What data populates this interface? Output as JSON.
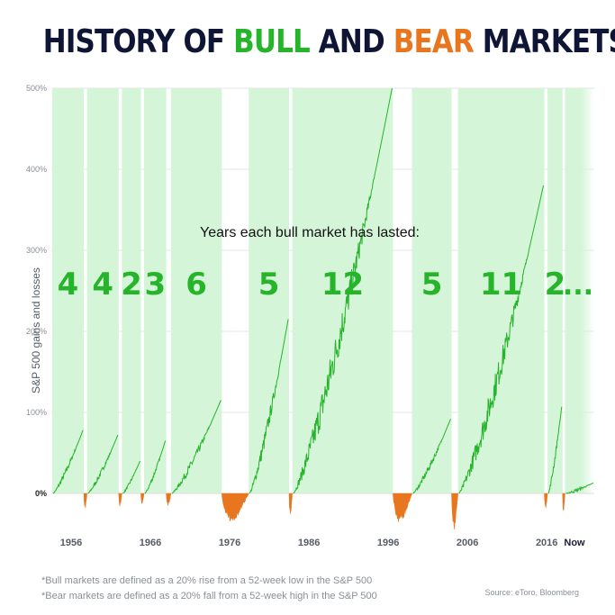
{
  "title": {
    "part1": "HISTORY OF ",
    "bull": "BULL",
    "part2": " AND ",
    "bear": "BEAR",
    "part3": " MARKETS"
  },
  "colors": {
    "title": "#0f1535",
    "bull": "#25b42a",
    "bear": "#e8761e",
    "bull_band": "#d5f5d8",
    "grid": "#e6e6e6"
  },
  "chart_data": {
    "type": "area",
    "ylabel": "S&P 500 gains and losses",
    "ylim": [
      -50,
      500
    ],
    "yticks": [
      "0%",
      "100%",
      "200%",
      "300%",
      "400%",
      "500%"
    ],
    "ytick_values": [
      0,
      100,
      200,
      300,
      400,
      500
    ],
    "xlim": [
      1953.5,
      2022
    ],
    "xticks": [
      "1956",
      "1966",
      "1976",
      "1986",
      "1996",
      "2006",
      "2016",
      "Now"
    ],
    "xtick_values": [
      1956,
      1966,
      1976,
      1986,
      1996,
      2006,
      2016,
      2021
    ],
    "annotation": "Years each bull market has lasted:",
    "bull_markets": [
      {
        "start": 1953.6,
        "end": 1957.6,
        "years": "4",
        "peak": 78
      },
      {
        "start": 1958.0,
        "end": 1962.0,
        "years": "4",
        "peak": 72
      },
      {
        "start": 1962.4,
        "end": 1964.8,
        "years": "2",
        "peak": 40
      },
      {
        "start": 1965.2,
        "end": 1968.0,
        "years": "3",
        "peak": 65
      },
      {
        "start": 1968.6,
        "end": 1975.0,
        "years": "6",
        "peak": 115
      },
      {
        "start": 1978.4,
        "end": 1983.5,
        "years": "5",
        "peak": 215
      },
      {
        "start": 1983.9,
        "end": 1996.6,
        "years": "12",
        "peak": 500
      },
      {
        "start": 1999.0,
        "end": 2004.0,
        "years": "5",
        "peak": 92
      },
      {
        "start": 2004.8,
        "end": 2015.7,
        "years": "11",
        "peak": 380
      },
      {
        "start": 2016.1,
        "end": 2018.0,
        "years": "2",
        "peak": 107
      },
      {
        "start": 2018.3,
        "end": 2022.0,
        "years": "...",
        "peak": 13
      }
    ],
    "bear_markets": [
      {
        "start": 1957.6,
        "end": 1958.0,
        "trough": -18
      },
      {
        "start": 1962.0,
        "end": 1962.4,
        "trough": -15
      },
      {
        "start": 1964.8,
        "end": 1965.2,
        "trough": -12
      },
      {
        "start": 1968.0,
        "end": 1968.6,
        "trough": -14
      },
      {
        "start": 1975.0,
        "end": 1978.4,
        "trough": -32
      },
      {
        "start": 1983.5,
        "end": 1983.9,
        "trough": -25
      },
      {
        "start": 1996.6,
        "end": 1999.0,
        "trough": -33
      },
      {
        "start": 2004.0,
        "end": 2004.8,
        "trough": -42
      },
      {
        "start": 2015.7,
        "end": 2016.1,
        "trough": -18
      },
      {
        "start": 2018.0,
        "end": 2018.3,
        "trough": -20
      }
    ]
  },
  "footnotes": [
    "*Bull markets are defined as a 20% rise from a 52-week low in the S&P 500",
    "*Bear markets are defined as a 20% fall from a 52-week high in the S&P 500"
  ],
  "source": "Source: eToro, Bloomberg"
}
